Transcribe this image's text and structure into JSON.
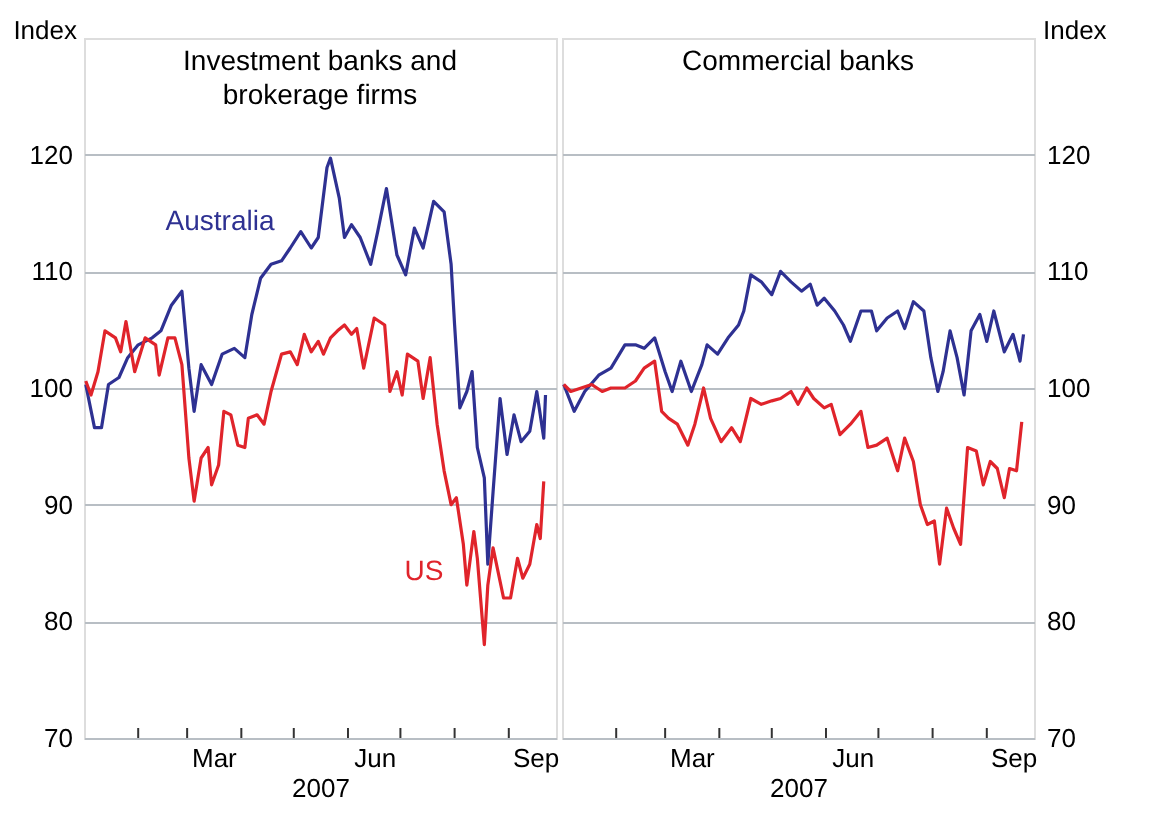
{
  "chart_data": [
    {
      "type": "line",
      "title": "Investment banks and\nbrokerage firms",
      "xlabel": "2007",
      "ylabel": "Index",
      "xlim": [
        "2007-01-01",
        "2007-09-28"
      ],
      "ylim": [
        70,
        130
      ],
      "yticks": [
        70,
        80,
        90,
        100,
        110,
        120
      ],
      "xticks": [
        {
          "value": "2007-02-01",
          "label": null
        },
        {
          "value": "2007-03-01",
          "label": null
        },
        {
          "value": "2007-04-01",
          "label": null
        },
        {
          "value": "2007-05-01",
          "label": null
        },
        {
          "value": "2007-06-01",
          "label": null
        },
        {
          "value": "2007-07-01",
          "label": null
        },
        {
          "value": "2007-08-01",
          "label": null
        },
        {
          "value": "2007-09-01",
          "label": null
        },
        {
          "value": "2007-03-16",
          "label": "Mar"
        },
        {
          "value": "2007-06-16",
          "label": "Jun"
        },
        {
          "value": "2007-09-16",
          "label": "Sep"
        }
      ],
      "grid": "y",
      "series": [
        {
          "name": "Australia",
          "color": "#2e3192",
          "x": [
            "2007-01-02",
            "2007-01-07",
            "2007-01-11",
            "2007-01-15",
            "2007-01-21",
            "2007-01-26",
            "2007-02-01",
            "2007-02-09",
            "2007-02-14",
            "2007-02-20",
            "2007-02-26",
            "2007-03-02",
            "2007-03-05",
            "2007-03-09",
            "2007-03-15",
            "2007-03-21",
            "2007-03-28",
            "2007-04-03",
            "2007-04-07",
            "2007-04-12",
            "2007-04-18",
            "2007-04-24",
            "2007-04-29",
            "2007-05-05",
            "2007-05-11",
            "2007-05-15",
            "2007-05-20",
            "2007-05-22",
            "2007-05-27",
            "2007-05-30",
            "2007-06-03",
            "2007-06-08",
            "2007-06-14",
            "2007-06-18",
            "2007-06-23",
            "2007-06-29",
            "2007-07-04",
            "2007-07-09",
            "2007-07-14",
            "2007-07-20",
            "2007-07-26",
            "2007-07-30",
            "2007-08-01",
            "2007-08-04",
            "2007-08-08",
            "2007-08-11",
            "2007-08-14",
            "2007-08-18",
            "2007-08-20",
            "2007-08-23",
            "2007-08-27",
            "2007-08-31",
            "2007-09-04",
            "2007-09-08",
            "2007-09-13",
            "2007-09-17",
            "2007-09-21",
            "2007-09-22"
          ],
          "values": [
            100.3,
            96.6,
            96.6,
            100.3,
            100.9,
            102.6,
            103.7,
            104.3,
            104.9,
            107.1,
            108.3,
            101.7,
            98,
            102,
            100.3,
            102.9,
            103.4,
            102.6,
            106.3,
            109.4,
            110.6,
            110.9,
            112,
            113.4,
            112,
            112.9,
            118.9,
            119.7,
            116.3,
            112.9,
            114,
            112.9,
            110.6,
            113.4,
            117.1,
            111.4,
            109.7,
            113.7,
            112,
            116,
            115.1,
            110.6,
            105.4,
            98.3,
            99.7,
            101.4,
            94.9,
            92.3,
            84.9,
            91.1,
            99.1,
            94.3,
            97.7,
            95.4,
            96.3,
            99.7,
            95.7,
            99.4
          ]
        },
        {
          "name": "US",
          "color": "#e0242b",
          "x": [
            "2007-01-02",
            "2007-01-05",
            "2007-01-09",
            "2007-01-13",
            "2007-01-19",
            "2007-01-22",
            "2007-01-25",
            "2007-01-30",
            "2007-02-05",
            "2007-02-11",
            "2007-02-13",
            "2007-02-18",
            "2007-02-22",
            "2007-02-26",
            "2007-03-02",
            "2007-03-05",
            "2007-03-09",
            "2007-03-13",
            "2007-03-15",
            "2007-03-19",
            "2007-03-22",
            "2007-03-26",
            "2007-03-30",
            "2007-04-03",
            "2007-04-05",
            "2007-04-10",
            "2007-04-14",
            "2007-04-18",
            "2007-04-24",
            "2007-04-29",
            "2007-05-03",
            "2007-05-07",
            "2007-05-11",
            "2007-05-15",
            "2007-05-18",
            "2007-05-22",
            "2007-05-26",
            "2007-05-30",
            "2007-06-03",
            "2007-06-06",
            "2007-06-10",
            "2007-06-16",
            "2007-06-22",
            "2007-06-25",
            "2007-06-29",
            "2007-07-02",
            "2007-07-05",
            "2007-07-11",
            "2007-07-14",
            "2007-07-18",
            "2007-07-22",
            "2007-07-26",
            "2007-07-30",
            "2007-08-02",
            "2007-08-06",
            "2007-08-08",
            "2007-08-12",
            "2007-08-14",
            "2007-08-18",
            "2007-08-20",
            "2007-08-23",
            "2007-08-29",
            "2007-09-02",
            "2007-09-06",
            "2007-09-09",
            "2007-09-13",
            "2007-09-17",
            "2007-09-19",
            "2007-09-21"
          ],
          "values": [
            100.6,
            99.4,
            101.4,
            104.9,
            104.3,
            103.1,
            105.7,
            101.4,
            104.3,
            103.7,
            101.1,
            104.3,
            104.3,
            102,
            94,
            90.3,
            94,
            94.9,
            91.7,
            93.4,
            98,
            97.7,
            95.1,
            94.9,
            97.4,
            97.7,
            96.9,
            99.7,
            102.9,
            103.1,
            102,
            104.6,
            103.1,
            104,
            102.9,
            104.3,
            104.9,
            105.4,
            104.6,
            105.1,
            101.7,
            106,
            105.4,
            99.7,
            101.4,
            99.4,
            102.9,
            102.3,
            99.1,
            102.6,
            96.9,
            92.9,
            90,
            90.6,
            86.6,
            83.1,
            87.7,
            85.4,
            78,
            83.1,
            86.3,
            82,
            82,
            85.4,
            83.7,
            84.9,
            88.3,
            87.1,
            92
          ]
        }
      ]
    },
    {
      "type": "line",
      "title": "Commercial banks",
      "xlabel": "2007",
      "ylabel": "Index",
      "xlim": [
        "2007-01-01",
        "2007-09-28"
      ],
      "ylim": [
        70,
        130
      ],
      "yticks": [
        70,
        80,
        90,
        100,
        110,
        120
      ],
      "xticks": [
        {
          "value": "2007-02-01",
          "label": null
        },
        {
          "value": "2007-03-01",
          "label": null
        },
        {
          "value": "2007-04-01",
          "label": null
        },
        {
          "value": "2007-05-01",
          "label": null
        },
        {
          "value": "2007-06-01",
          "label": null
        },
        {
          "value": "2007-07-01",
          "label": null
        },
        {
          "value": "2007-08-01",
          "label": null
        },
        {
          "value": "2007-09-01",
          "label": null
        },
        {
          "value": "2007-03-16",
          "label": "Mar"
        },
        {
          "value": "2007-06-16",
          "label": "Jun"
        },
        {
          "value": "2007-09-16",
          "label": "Sep"
        }
      ],
      "grid": "y",
      "series": [
        {
          "color": "#2e3192",
          "x": [
            "2007-01-02",
            "2007-01-08",
            "2007-01-14",
            "2007-01-22",
            "2007-01-29",
            "2007-02-06",
            "2007-02-12",
            "2007-02-17",
            "2007-02-23",
            "2007-03-01",
            "2007-03-05",
            "2007-03-10",
            "2007-03-16",
            "2007-03-22",
            "2007-03-25",
            "2007-03-31",
            "2007-04-06",
            "2007-04-12",
            "2007-04-15",
            "2007-04-19",
            "2007-04-25",
            "2007-05-01",
            "2007-05-06",
            "2007-05-12",
            "2007-05-18",
            "2007-05-23",
            "2007-05-27",
            "2007-05-31",
            "2007-06-06",
            "2007-06-11",
            "2007-06-15",
            "2007-06-21",
            "2007-06-27",
            "2007-06-30",
            "2007-07-06",
            "2007-07-12",
            "2007-07-16",
            "2007-07-21",
            "2007-07-27",
            "2007-07-31",
            "2007-08-04",
            "2007-08-07",
            "2007-08-11",
            "2007-08-15",
            "2007-08-19",
            "2007-08-23",
            "2007-08-28",
            "2007-09-01",
            "2007-09-05",
            "2007-09-11",
            "2007-09-16",
            "2007-09-20",
            "2007-09-22"
          ],
          "values": [
            100.3,
            98,
            99.7,
            101.1,
            101.7,
            103.7,
            103.7,
            103.4,
            104.3,
            101.4,
            99.7,
            102.3,
            99.7,
            102,
            103.7,
            102.9,
            104.3,
            105.4,
            106.6,
            109.7,
            109.1,
            108,
            110,
            109.1,
            108.3,
            108.9,
            107.1,
            107.7,
            106.6,
            105.4,
            104,
            106.6,
            106.6,
            104.9,
            106,
            106.6,
            105.1,
            107.4,
            106.6,
            102.6,
            99.7,
            101.4,
            104.9,
            102.6,
            99.4,
            104.9,
            106.3,
            104,
            106.6,
            103.1,
            104.6,
            102.3,
            104.6
          ]
        },
        {
          "color": "#e0242b",
          "x": [
            "2007-01-02",
            "2007-01-06",
            "2007-01-12",
            "2007-01-18",
            "2007-01-24",
            "2007-01-29",
            "2007-02-06",
            "2007-02-12",
            "2007-02-17",
            "2007-02-23",
            "2007-02-27",
            "2007-03-03",
            "2007-03-08",
            "2007-03-14",
            "2007-03-18",
            "2007-03-23",
            "2007-03-27",
            "2007-04-02",
            "2007-04-08",
            "2007-04-13",
            "2007-04-19",
            "2007-04-25",
            "2007-05-01",
            "2007-05-06",
            "2007-05-12",
            "2007-05-16",
            "2007-05-21",
            "2007-05-25",
            "2007-05-31",
            "2007-06-04",
            "2007-06-09",
            "2007-06-15",
            "2007-06-21",
            "2007-06-25",
            "2007-06-30",
            "2007-07-06",
            "2007-07-12",
            "2007-07-16",
            "2007-07-21",
            "2007-07-25",
            "2007-07-29",
            "2007-08-02",
            "2007-08-05",
            "2007-08-09",
            "2007-08-13",
            "2007-08-17",
            "2007-08-21",
            "2007-08-26",
            "2007-08-30",
            "2007-09-03",
            "2007-09-07",
            "2007-09-11",
            "2007-09-14",
            "2007-09-18",
            "2007-09-21"
          ],
          "values": [
            100.3,
            99.7,
            100,
            100.3,
            99.7,
            100,
            100,
            100.6,
            101.7,
            102.3,
            98,
            97.4,
            96.9,
            95.1,
            96.9,
            100,
            97.4,
            95.4,
            96.6,
            95.4,
            99.1,
            98.6,
            98.9,
            99.1,
            99.7,
            98.6,
            100,
            99.1,
            98.3,
            98.6,
            96,
            96.9,
            98,
            94.9,
            95.1,
            95.7,
            92.9,
            95.7,
            93.7,
            90,
            88.3,
            88.6,
            84.9,
            89.7,
            88,
            86.6,
            94.9,
            94.6,
            91.7,
            93.7,
            93.1,
            90.6,
            93.1,
            92.9,
            97.1
          ]
        }
      ]
    }
  ]
}
